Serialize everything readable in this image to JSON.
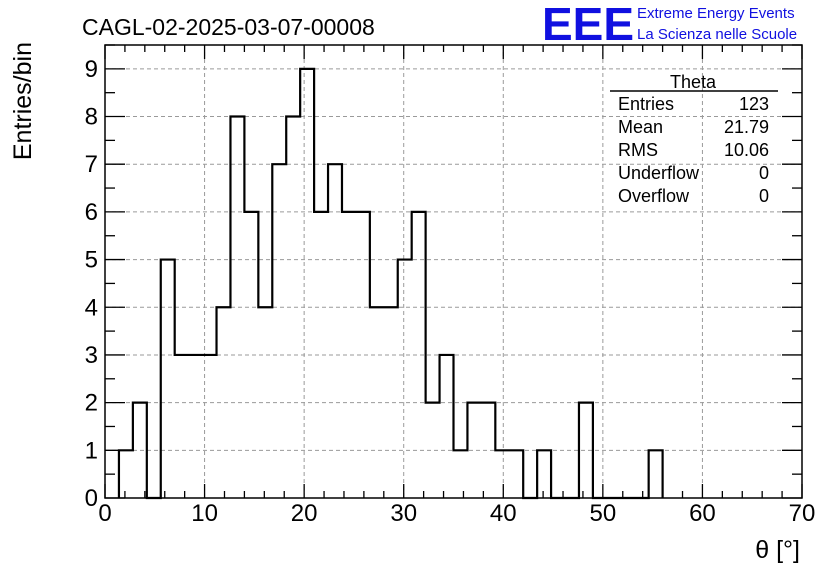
{
  "chart_data": {
    "type": "histogram",
    "title": "CAGL-02-2025-03-07-00008",
    "xlabel": "θ [°]",
    "ylabel": "Entries/bin",
    "xlim": [
      0,
      70
    ],
    "ylim": [
      0,
      9.5
    ],
    "x_ticks": [
      0,
      10,
      20,
      30,
      40,
      50,
      60,
      70
    ],
    "y_ticks": [
      0,
      1,
      2,
      3,
      4,
      5,
      6,
      7,
      8,
      9
    ],
    "grid": true,
    "bin_width": 1.4,
    "bin_start": 1.4,
    "counts": [
      1,
      2,
      0,
      5,
      3,
      3,
      3,
      4,
      8,
      6,
      4,
      7,
      8,
      9,
      6,
      7,
      6,
      6,
      4,
      4,
      5,
      6,
      2,
      3,
      1,
      2,
      2,
      1,
      1,
      0,
      1,
      0,
      0,
      2,
      0,
      0,
      0,
      0,
      1
    ],
    "stats": {
      "title": "Theta",
      "rows": [
        {
          "label": "Entries",
          "value": "123"
        },
        {
          "label": "Mean",
          "value": "21.79"
        },
        {
          "label": "RMS",
          "value": "10.06"
        },
        {
          "label": "Underflow",
          "value": "0"
        },
        {
          "label": "Overflow",
          "value": "0"
        }
      ]
    },
    "logo": {
      "text": "EEE",
      "line1": "Extreme Energy Events",
      "line2": "La Scienza nelle Scuole",
      "color": "#1010e0"
    }
  }
}
